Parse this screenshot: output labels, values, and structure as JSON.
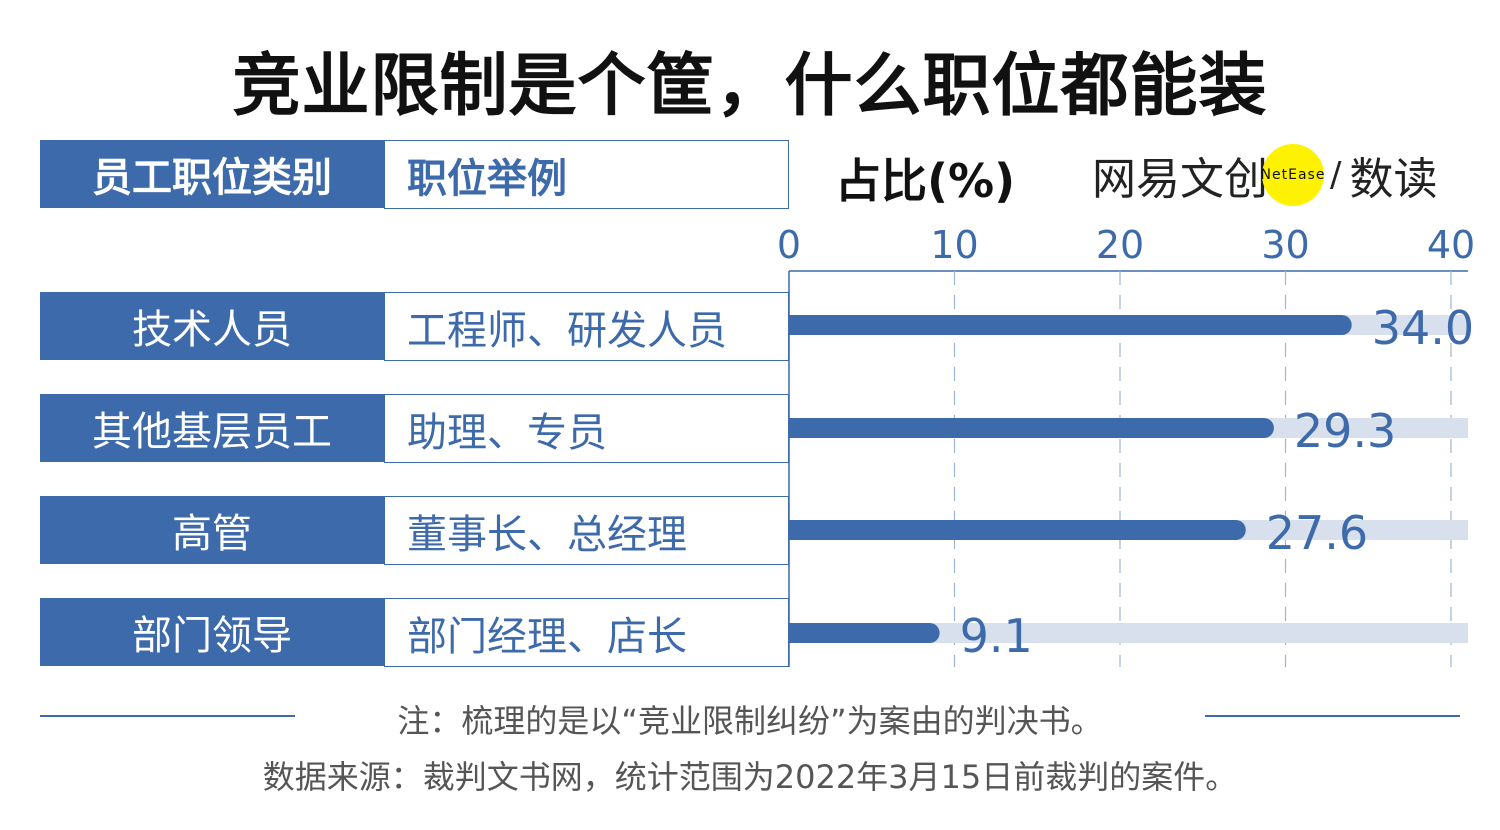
{
  "title": "竞业限制是个筐，什么职位都能装",
  "table": {
    "header_category": "员工职位类别",
    "header_example": "职位举例",
    "rows": [
      {
        "category": "技术人员",
        "example": "工程师、研发人员"
      },
      {
        "category": "其他基层员工",
        "example": "助理、专员"
      },
      {
        "category": "高管",
        "example": "董事长、总经理"
      },
      {
        "category": "部门领导",
        "example": "部门经理、店长"
      }
    ]
  },
  "logo": {
    "text_cn": "网易文创",
    "text_en": "NetEase",
    "text_sub": "数读",
    "accent": "#fff200"
  },
  "colors": {
    "bar": "#3d6aaa",
    "track": "#d7e0ec",
    "grid": "#9fb3d1"
  },
  "chart_data": {
    "type": "bar",
    "orientation": "horizontal",
    "ylabel": "占比(%)",
    "categories": [
      "技术人员",
      "其他基层员工",
      "高管",
      "部门领导"
    ],
    "values": [
      34.0,
      29.3,
      27.6,
      9.1
    ],
    "value_labels": [
      "34.0",
      "29.3",
      "27.6",
      "9.1"
    ],
    "xlim": [
      0,
      40
    ],
    "ticks": [
      "0",
      "10",
      "20",
      "30",
      "40"
    ],
    "grid": "vertical-dashed"
  },
  "footer": {
    "note": "注：梳理的是以“竞业限制纠纷”为案由的判决书。",
    "source": "数据来源：裁判文书网，统计范围为2022年3月15日前裁判的案件。"
  }
}
